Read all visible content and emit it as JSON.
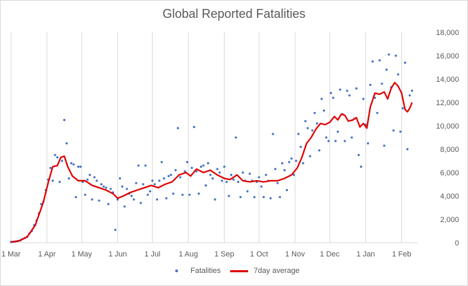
{
  "chart_data": {
    "type": "scatter",
    "title": "Global Reported Fatalities",
    "xlabel": "",
    "ylabel": "",
    "x_range": [
      "2020-03-01",
      "2021-02-15"
    ],
    "ylim": [
      0,
      18000
    ],
    "y_ticks": [
      "0",
      "2,000",
      "4,000",
      "6,000",
      "8,000",
      "10,000",
      "12,000",
      "14,000",
      "16,000",
      "18,000"
    ],
    "x_ticks": [
      {
        "date": "2020-03-01",
        "label": "1 Mar"
      },
      {
        "date": "2020-04-01",
        "label": "1 Apr"
      },
      {
        "date": "2020-05-01",
        "label": "1 May"
      },
      {
        "date": "2020-06-01",
        "label": "1 Jun"
      },
      {
        "date": "2020-07-01",
        "label": "1 Jul"
      },
      {
        "date": "2020-08-01",
        "label": "1 Aug"
      },
      {
        "date": "2020-09-01",
        "label": "1 Sep"
      },
      {
        "date": "2020-10-01",
        "label": "1 Oct"
      },
      {
        "date": "2020-11-01",
        "label": "1 Nov"
      },
      {
        "date": "2020-12-01",
        "label": "1 Dec"
      },
      {
        "date": "2021-01-01",
        "label": "1 Jan"
      },
      {
        "date": "2021-02-01",
        "label": "1 Feb"
      }
    ],
    "grid": {
      "vertical": true,
      "horizontal": false
    },
    "y_axis_side": "right",
    "legend_position": "bottom",
    "series": [
      {
        "name": "Fatalities",
        "kind": "scatter",
        "color": "#4472c4",
        "points": [
          [
            "2020-03-01",
            60
          ],
          [
            "2020-03-03",
            80
          ],
          [
            "2020-03-05",
            100
          ],
          [
            "2020-03-07",
            150
          ],
          [
            "2020-03-09",
            200
          ],
          [
            "2020-03-11",
            320
          ],
          [
            "2020-03-13",
            400
          ],
          [
            "2020-03-15",
            500
          ],
          [
            "2020-03-17",
            800
          ],
          [
            "2020-03-19",
            1000
          ],
          [
            "2020-03-21",
            1500
          ],
          [
            "2020-03-23",
            1900
          ],
          [
            "2020-03-25",
            2500
          ],
          [
            "2020-03-27",
            3300
          ],
          [
            "2020-03-29",
            3500
          ],
          [
            "2020-03-31",
            4500
          ],
          [
            "2020-04-02",
            5400
          ],
          [
            "2020-04-04",
            6400
          ],
          [
            "2020-04-06",
            5300
          ],
          [
            "2020-04-08",
            7500
          ],
          [
            "2020-04-10",
            7300
          ],
          [
            "2020-04-12",
            5200
          ],
          [
            "2020-04-14",
            7000
          ],
          [
            "2020-04-16",
            10500
          ],
          [
            "2020-04-18",
            8500
          ],
          [
            "2020-04-20",
            5500
          ],
          [
            "2020-04-22",
            6800
          ],
          [
            "2020-04-24",
            6700
          ],
          [
            "2020-04-26",
            3900
          ],
          [
            "2020-04-28",
            6500
          ],
          [
            "2020-04-30",
            6500
          ],
          [
            "2020-05-02",
            5200
          ],
          [
            "2020-05-04",
            4100
          ],
          [
            "2020-05-06",
            5400
          ],
          [
            "2020-05-08",
            5800
          ],
          [
            "2020-05-10",
            3700
          ],
          [
            "2020-05-12",
            5600
          ],
          [
            "2020-05-14",
            5300
          ],
          [
            "2020-05-16",
            3600
          ],
          [
            "2020-05-18",
            5000
          ],
          [
            "2020-05-20",
            4800
          ],
          [
            "2020-05-22",
            4700
          ],
          [
            "2020-05-24",
            3300
          ],
          [
            "2020-05-26",
            4600
          ],
          [
            "2020-05-28",
            4300
          ],
          [
            "2020-05-30",
            1100
          ],
          [
            "2020-06-01",
            3700
          ],
          [
            "2020-06-03",
            5500
          ],
          [
            "2020-06-05",
            4800
          ],
          [
            "2020-06-07",
            3100
          ],
          [
            "2020-06-09",
            4600
          ],
          [
            "2020-06-11",
            4200
          ],
          [
            "2020-06-13",
            4000
          ],
          [
            "2020-06-15",
            3700
          ],
          [
            "2020-06-17",
            5100
          ],
          [
            "2020-06-19",
            6600
          ],
          [
            "2020-06-21",
            3400
          ],
          [
            "2020-06-23",
            5000
          ],
          [
            "2020-06-25",
            6600
          ],
          [
            "2020-06-27",
            4100
          ],
          [
            "2020-06-29",
            4400
          ],
          [
            "2020-07-01",
            5300
          ],
          [
            "2020-07-03",
            5000
          ],
          [
            "2020-07-05",
            3700
          ],
          [
            "2020-07-07",
            5300
          ],
          [
            "2020-07-09",
            6900
          ],
          [
            "2020-07-11",
            5500
          ],
          [
            "2020-07-13",
            3800
          ],
          [
            "2020-07-15",
            5700
          ],
          [
            "2020-07-17",
            5800
          ],
          [
            "2020-07-19",
            4200
          ],
          [
            "2020-07-21",
            6200
          ],
          [
            "2020-07-23",
            9800
          ],
          [
            "2020-07-25",
            5600
          ],
          [
            "2020-07-27",
            4100
          ],
          [
            "2020-07-29",
            6100
          ],
          [
            "2020-07-31",
            6900
          ],
          [
            "2020-08-02",
            4100
          ],
          [
            "2020-08-04",
            6400
          ],
          [
            "2020-08-06",
            9900
          ],
          [
            "2020-08-08",
            6100
          ],
          [
            "2020-08-10",
            4200
          ],
          [
            "2020-08-12",
            6500
          ],
          [
            "2020-08-14",
            6600
          ],
          [
            "2020-08-16",
            4900
          ],
          [
            "2020-08-18",
            6800
          ],
          [
            "2020-08-20",
            5800
          ],
          [
            "2020-08-22",
            5500
          ],
          [
            "2020-08-24",
            3700
          ],
          [
            "2020-08-26",
            6300
          ],
          [
            "2020-08-28",
            6000
          ],
          [
            "2020-08-30",
            5300
          ],
          [
            "2020-09-01",
            6500
          ],
          [
            "2020-09-03",
            5200
          ],
          [
            "2020-09-05",
            4000
          ],
          [
            "2020-09-07",
            5800
          ],
          [
            "2020-09-09",
            5400
          ],
          [
            "2020-09-11",
            9000
          ],
          [
            "2020-09-13",
            5200
          ],
          [
            "2020-09-15",
            3900
          ],
          [
            "2020-09-17",
            6000
          ],
          [
            "2020-09-19",
            5300
          ],
          [
            "2020-09-21",
            4400
          ],
          [
            "2020-09-23",
            5900
          ],
          [
            "2020-09-25",
            5300
          ],
          [
            "2020-09-27",
            3900
          ],
          [
            "2020-09-29",
            5200
          ],
          [
            "2020-10-01",
            5600
          ],
          [
            "2020-10-03",
            4800
          ],
          [
            "2020-10-05",
            3900
          ],
          [
            "2020-10-07",
            5800
          ],
          [
            "2020-10-09",
            5300
          ],
          [
            "2020-10-11",
            3800
          ],
          [
            "2020-10-13",
            9300
          ],
          [
            "2020-10-15",
            6300
          ],
          [
            "2020-10-17",
            5100
          ],
          [
            "2020-10-19",
            3900
          ],
          [
            "2020-10-21",
            6800
          ],
          [
            "2020-10-23",
            6200
          ],
          [
            "2020-10-25",
            4500
          ],
          [
            "2020-10-27",
            6900
          ],
          [
            "2020-10-29",
            7200
          ],
          [
            "2020-10-31",
            5800
          ],
          [
            "2020-11-02",
            7000
          ],
          [
            "2020-11-04",
            9300
          ],
          [
            "2020-11-06",
            8200
          ],
          [
            "2020-11-08",
            6800
          ],
          [
            "2020-11-10",
            10400
          ],
          [
            "2020-11-12",
            9800
          ],
          [
            "2020-11-14",
            7400
          ],
          [
            "2020-11-16",
            9600
          ],
          [
            "2020-11-18",
            11100
          ],
          [
            "2020-11-20",
            10200
          ],
          [
            "2020-11-22",
            7900
          ],
          [
            "2020-11-24",
            12300
          ],
          [
            "2020-11-26",
            11300
          ],
          [
            "2020-11-28",
            9000
          ],
          [
            "2020-11-30",
            8700
          ],
          [
            "2020-12-02",
            12800
          ],
          [
            "2020-12-04",
            12400
          ],
          [
            "2020-12-06",
            8700
          ],
          [
            "2020-12-08",
            9500
          ],
          [
            "2020-12-10",
            13100
          ],
          [
            "2020-12-12",
            11000
          ],
          [
            "2020-12-14",
            8700
          ],
          [
            "2020-12-16",
            13000
          ],
          [
            "2020-12-18",
            12600
          ],
          [
            "2020-12-20",
            9000
          ],
          [
            "2020-12-22",
            10600
          ],
          [
            "2020-12-24",
            13200
          ],
          [
            "2020-12-26",
            7500
          ],
          [
            "2020-12-28",
            6500
          ],
          [
            "2020-12-30",
            12300
          ],
          [
            "2021-01-01",
            10100
          ],
          [
            "2021-01-03",
            8500
          ],
          [
            "2021-01-05",
            13500
          ],
          [
            "2021-01-07",
            15500
          ],
          [
            "2021-01-09",
            12400
          ],
          [
            "2021-01-11",
            11100
          ],
          [
            "2021-01-13",
            15600
          ],
          [
            "2021-01-15",
            13600
          ],
          [
            "2021-01-17",
            8300
          ],
          [
            "2021-01-19",
            14800
          ],
          [
            "2021-01-21",
            16100
          ],
          [
            "2021-01-23",
            13300
          ],
          [
            "2021-01-25",
            9600
          ],
          [
            "2021-01-27",
            16000
          ],
          [
            "2021-01-29",
            14400
          ],
          [
            "2021-01-31",
            9500
          ],
          [
            "2021-02-02",
            11500
          ],
          [
            "2021-02-04",
            15400
          ],
          [
            "2021-02-06",
            8000
          ],
          [
            "2021-02-08",
            12600
          ],
          [
            "2021-02-10",
            13000
          ]
        ]
      },
      {
        "name": "7day average",
        "kind": "line",
        "color": "#e00000",
        "points": [
          [
            "2020-03-01",
            50
          ],
          [
            "2020-03-08",
            150
          ],
          [
            "2020-03-15",
            500
          ],
          [
            "2020-03-22",
            1500
          ],
          [
            "2020-03-29",
            3500
          ],
          [
            "2020-04-02",
            5100
          ],
          [
            "2020-04-06",
            6500
          ],
          [
            "2020-04-10",
            6600
          ],
          [
            "2020-04-13",
            7300
          ],
          [
            "2020-04-16",
            7400
          ],
          [
            "2020-04-19",
            6500
          ],
          [
            "2020-04-23",
            5700
          ],
          [
            "2020-04-28",
            5300
          ],
          [
            "2020-05-04",
            5300
          ],
          [
            "2020-05-10",
            4900
          ],
          [
            "2020-05-16",
            4700
          ],
          [
            "2020-05-22",
            4500
          ],
          [
            "2020-05-28",
            4200
          ],
          [
            "2020-06-01",
            3800
          ],
          [
            "2020-06-06",
            4000
          ],
          [
            "2020-06-12",
            4300
          ],
          [
            "2020-06-18",
            4500
          ],
          [
            "2020-06-24",
            4700
          ],
          [
            "2020-06-30",
            4900
          ],
          [
            "2020-07-06",
            4700
          ],
          [
            "2020-07-12",
            5000
          ],
          [
            "2020-07-18",
            5200
          ],
          [
            "2020-07-24",
            5800
          ],
          [
            "2020-07-30",
            6000
          ],
          [
            "2020-08-03",
            5700
          ],
          [
            "2020-08-08",
            6300
          ],
          [
            "2020-08-14",
            6000
          ],
          [
            "2020-08-20",
            6200
          ],
          [
            "2020-08-26",
            5800
          ],
          [
            "2020-09-01",
            5500
          ],
          [
            "2020-09-06",
            5400
          ],
          [
            "2020-09-12",
            5800
          ],
          [
            "2020-09-17",
            5300
          ],
          [
            "2020-09-23",
            5200
          ],
          [
            "2020-09-29",
            5300
          ],
          [
            "2020-10-05",
            5200
          ],
          [
            "2020-10-11",
            5300
          ],
          [
            "2020-10-17",
            5300
          ],
          [
            "2020-10-23",
            5500
          ],
          [
            "2020-10-29",
            5800
          ],
          [
            "2020-11-03",
            6400
          ],
          [
            "2020-11-07",
            7300
          ],
          [
            "2020-11-11",
            8500
          ],
          [
            "2020-11-15",
            9000
          ],
          [
            "2020-11-19",
            9700
          ],
          [
            "2020-11-23",
            10200
          ],
          [
            "2020-11-27",
            10100
          ],
          [
            "2020-12-01",
            10300
          ],
          [
            "2020-12-05",
            10800
          ],
          [
            "2020-12-08",
            10500
          ],
          [
            "2020-12-11",
            11000
          ],
          [
            "2020-12-14",
            10900
          ],
          [
            "2020-12-17",
            10400
          ],
          [
            "2020-12-21",
            10500
          ],
          [
            "2020-12-24",
            10700
          ],
          [
            "2020-12-27",
            9900
          ],
          [
            "2020-12-30",
            10200
          ],
          [
            "2021-01-02",
            9800
          ],
          [
            "2021-01-05",
            11600
          ],
          [
            "2021-01-09",
            12800
          ],
          [
            "2021-01-13",
            12700
          ],
          [
            "2021-01-17",
            12900
          ],
          [
            "2021-01-20",
            12300
          ],
          [
            "2021-01-23",
            13200
          ],
          [
            "2021-01-26",
            13700
          ],
          [
            "2021-01-29",
            13400
          ],
          [
            "2021-02-01",
            12800
          ],
          [
            "2021-02-04",
            11400
          ],
          [
            "2021-02-06",
            11200
          ],
          [
            "2021-02-08",
            11500
          ],
          [
            "2021-02-10",
            12000
          ]
        ]
      }
    ]
  }
}
